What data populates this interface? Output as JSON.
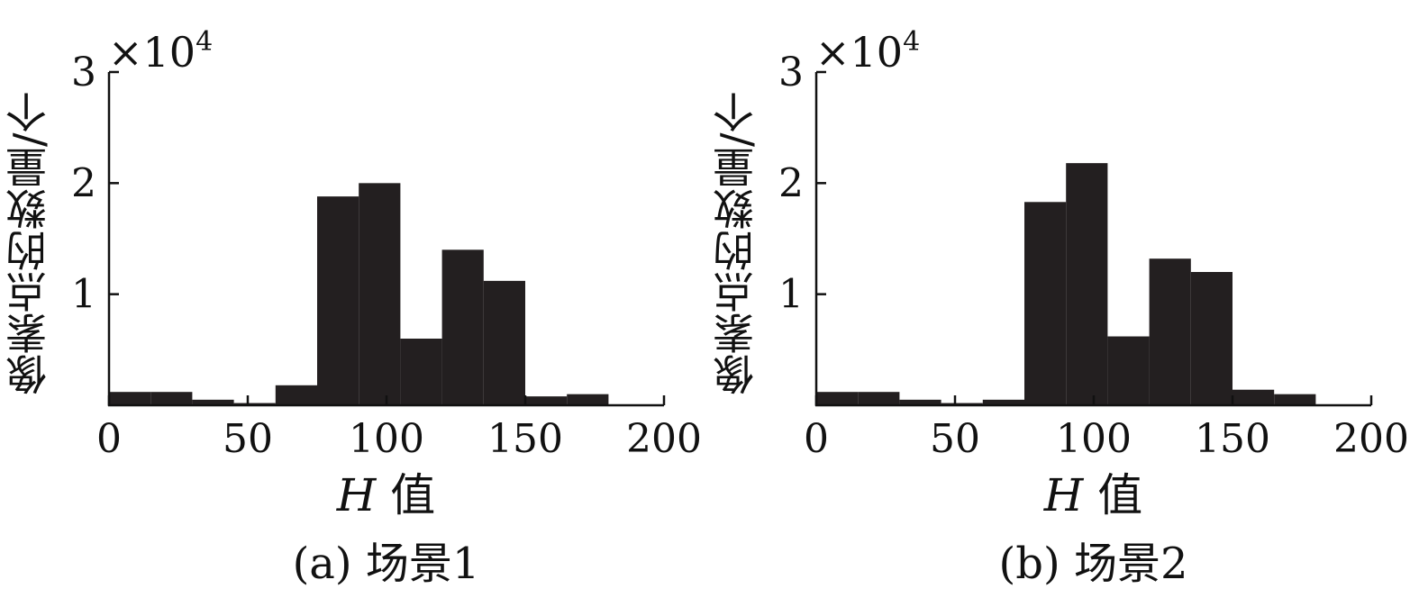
{
  "chart_data": [
    {
      "type": "bar",
      "subtitle": "(a) 场景1",
      "xlabel": "H",
      "xlabel_suffix": "值",
      "ylabel": "像素点的数量/个",
      "y_multiplier": "×10",
      "y_multiplier_exp": "4",
      "xlim": [
        0,
        200
      ],
      "ylim": [
        0,
        3
      ],
      "x_ticks": [
        "0",
        "50",
        "100",
        "150",
        "200"
      ],
      "y_ticks": [
        "1",
        "2",
        "3"
      ],
      "bin_width": 15,
      "bin_starts": [
        0,
        15,
        30,
        45,
        60,
        75,
        90,
        105,
        120,
        135,
        150,
        165,
        180
      ],
      "values": [
        0.12,
        0.12,
        0.05,
        0.02,
        0.18,
        1.88,
        2.0,
        0.6,
        1.4,
        1.12,
        0.08,
        0.1,
        0.0
      ],
      "bar_color": "#231f20"
    },
    {
      "type": "bar",
      "subtitle": "(b) 场景2",
      "xlabel": "H",
      "xlabel_suffix": "值",
      "ylabel": "像素点的数量/个",
      "y_multiplier": "×10",
      "y_multiplier_exp": "4",
      "xlim": [
        0,
        200
      ],
      "ylim": [
        0,
        3
      ],
      "x_ticks": [
        "0",
        "50",
        "100",
        "150",
        "200"
      ],
      "y_ticks": [
        "1",
        "2",
        "3"
      ],
      "bin_width": 15,
      "bin_starts": [
        0,
        15,
        30,
        45,
        60,
        75,
        90,
        105,
        120,
        135,
        150,
        165,
        180
      ],
      "values": [
        0.12,
        0.12,
        0.05,
        0.02,
        0.05,
        1.83,
        2.18,
        0.62,
        1.32,
        1.2,
        0.14,
        0.1,
        0.0
      ],
      "bar_color": "#231f20"
    }
  ]
}
